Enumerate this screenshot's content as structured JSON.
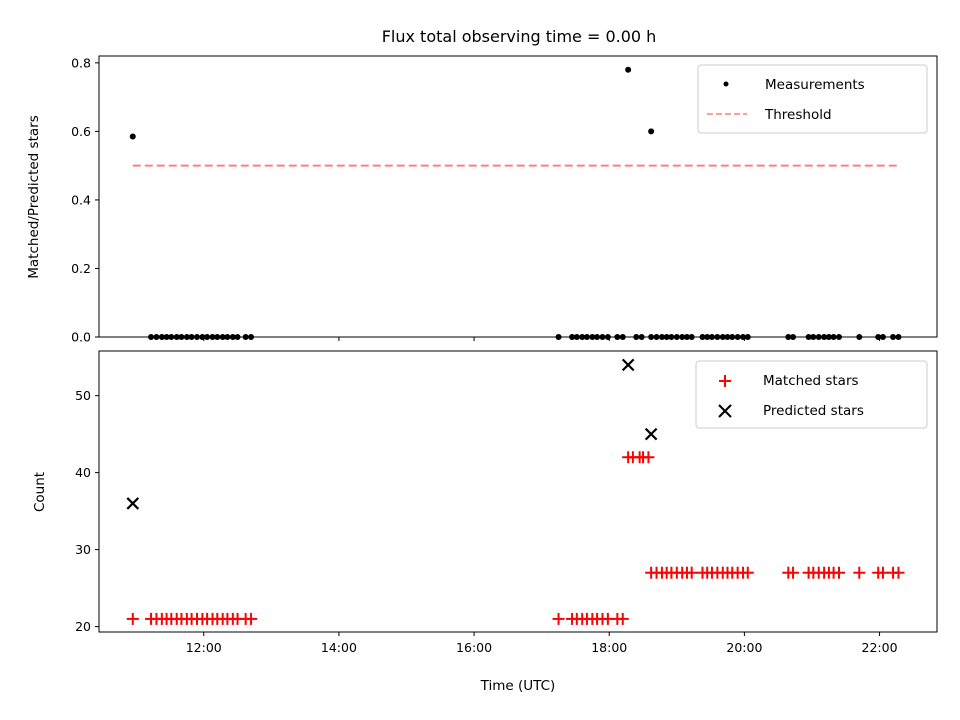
{
  "chart_data": [
    {
      "type": "scatter",
      "title": "Flux total observing time = 0.00 h",
      "xlabel": "",
      "ylabel": "Matched/Predicted stars",
      "xlim": [
        10.45,
        22.85
      ],
      "ylim": [
        0,
        0.82
      ],
      "yticks": [
        0.0,
        0.2,
        0.4,
        0.6,
        0.8
      ],
      "yticklabels": [
        "0.0",
        "0.2",
        "0.4",
        "0.6",
        "0.8"
      ],
      "legend": {
        "placement": "top-right",
        "entries": [
          "Measurements",
          "Threshold"
        ]
      },
      "colors": {
        "measurements": "#000000",
        "threshold": "#ff7f7f"
      },
      "series": [
        {
          "name": "Measurements",
          "marker": "dot",
          "points": [
            [
              10.95,
              0.585
            ],
            [
              11.22,
              0.0
            ],
            [
              11.3,
              0.0
            ],
            [
              11.38,
              0.0
            ],
            [
              11.45,
              0.0
            ],
            [
              11.52,
              0.0
            ],
            [
              11.6,
              0.0
            ],
            [
              11.67,
              0.0
            ],
            [
              11.75,
              0.0
            ],
            [
              11.82,
              0.0
            ],
            [
              11.9,
              0.0
            ],
            [
              11.98,
              0.0
            ],
            [
              12.05,
              0.0
            ],
            [
              12.13,
              0.0
            ],
            [
              12.2,
              0.0
            ],
            [
              12.28,
              0.0
            ],
            [
              12.35,
              0.0
            ],
            [
              12.43,
              0.0
            ],
            [
              12.5,
              0.0
            ],
            [
              12.62,
              0.0
            ],
            [
              12.7,
              0.0
            ],
            [
              17.25,
              0.0
            ],
            [
              17.45,
              0.0
            ],
            [
              17.52,
              0.0
            ],
            [
              17.6,
              0.0
            ],
            [
              17.67,
              0.0
            ],
            [
              17.75,
              0.0
            ],
            [
              17.82,
              0.0
            ],
            [
              17.9,
              0.0
            ],
            [
              17.98,
              0.0
            ],
            [
              18.12,
              0.0
            ],
            [
              18.2,
              0.0
            ],
            [
              18.28,
              0.78
            ],
            [
              18.62,
              0.6
            ],
            [
              18.4,
              0.0
            ],
            [
              18.48,
              0.0
            ],
            [
              18.62,
              0.0
            ],
            [
              18.7,
              0.0
            ],
            [
              18.78,
              0.0
            ],
            [
              18.85,
              0.0
            ],
            [
              18.92,
              0.0
            ],
            [
              19.0,
              0.0
            ],
            [
              19.08,
              0.0
            ],
            [
              19.15,
              0.0
            ],
            [
              19.22,
              0.0
            ],
            [
              19.38,
              0.0
            ],
            [
              19.45,
              0.0
            ],
            [
              19.52,
              0.0
            ],
            [
              19.6,
              0.0
            ],
            [
              19.68,
              0.0
            ],
            [
              19.75,
              0.0
            ],
            [
              19.82,
              0.0
            ],
            [
              19.9,
              0.0
            ],
            [
              19.98,
              0.0
            ],
            [
              20.05,
              0.0
            ],
            [
              20.65,
              0.0
            ],
            [
              20.72,
              0.0
            ],
            [
              20.95,
              0.0
            ],
            [
              21.02,
              0.0
            ],
            [
              21.1,
              0.0
            ],
            [
              21.18,
              0.0
            ],
            [
              21.25,
              0.0
            ],
            [
              21.32,
              0.0
            ],
            [
              21.4,
              0.0
            ],
            [
              21.7,
              0.0
            ],
            [
              21.98,
              0.0
            ],
            [
              22.05,
              0.0
            ],
            [
              22.2,
              0.0
            ],
            [
              22.28,
              0.0
            ]
          ]
        },
        {
          "name": "Threshold",
          "style": "dashed",
          "points": [
            [
              10.95,
              0.5
            ],
            [
              22.28,
              0.5
            ]
          ]
        }
      ]
    },
    {
      "type": "scatter",
      "title": "",
      "xlabel": "Time (UTC)",
      "ylabel": "Count",
      "xlim": [
        10.45,
        22.85
      ],
      "ylim": [
        19.3,
        55.8
      ],
      "xticks": [
        12,
        14,
        16,
        18,
        20,
        22
      ],
      "xticklabels": [
        "12:00",
        "14:00",
        "16:00",
        "18:00",
        "20:00",
        "22:00"
      ],
      "yticks": [
        20,
        30,
        40,
        50
      ],
      "yticklabels": [
        "20",
        "30",
        "40",
        "50"
      ],
      "legend": {
        "placement": "top-right",
        "entries": [
          "Matched stars",
          "Predicted stars"
        ]
      },
      "colors": {
        "matched": "#ff0000",
        "predicted": "#000000"
      },
      "series": [
        {
          "name": "Matched stars",
          "marker": "plus",
          "points": [
            [
              10.95,
              21
            ],
            [
              11.22,
              21
            ],
            [
              11.3,
              21
            ],
            [
              11.38,
              21
            ],
            [
              11.45,
              21
            ],
            [
              11.52,
              21
            ],
            [
              11.6,
              21
            ],
            [
              11.67,
              21
            ],
            [
              11.75,
              21
            ],
            [
              11.82,
              21
            ],
            [
              11.9,
              21
            ],
            [
              11.98,
              21
            ],
            [
              12.05,
              21
            ],
            [
              12.13,
              21
            ],
            [
              12.2,
              21
            ],
            [
              12.28,
              21
            ],
            [
              12.35,
              21
            ],
            [
              12.43,
              21
            ],
            [
              12.5,
              21
            ],
            [
              12.62,
              21
            ],
            [
              12.7,
              21
            ],
            [
              17.25,
              21
            ],
            [
              17.45,
              21
            ],
            [
              17.52,
              21
            ],
            [
              17.6,
              21
            ],
            [
              17.67,
              21
            ],
            [
              17.75,
              21
            ],
            [
              17.82,
              21
            ],
            [
              17.9,
              21
            ],
            [
              17.98,
              21
            ],
            [
              18.12,
              21
            ],
            [
              18.2,
              21
            ],
            [
              18.28,
              42
            ],
            [
              18.35,
              42
            ],
            [
              18.45,
              42
            ],
            [
              18.5,
              42
            ],
            [
              18.58,
              42
            ],
            [
              18.62,
              27
            ],
            [
              18.7,
              27
            ],
            [
              18.78,
              27
            ],
            [
              18.85,
              27
            ],
            [
              18.92,
              27
            ],
            [
              19.0,
              27
            ],
            [
              19.08,
              27
            ],
            [
              19.15,
              27
            ],
            [
              19.22,
              27
            ],
            [
              19.38,
              27
            ],
            [
              19.45,
              27
            ],
            [
              19.52,
              27
            ],
            [
              19.6,
              27
            ],
            [
              19.68,
              27
            ],
            [
              19.75,
              27
            ],
            [
              19.82,
              27
            ],
            [
              19.9,
              27
            ],
            [
              19.98,
              27
            ],
            [
              20.05,
              27
            ],
            [
              20.65,
              27
            ],
            [
              20.72,
              27
            ],
            [
              20.95,
              27
            ],
            [
              21.02,
              27
            ],
            [
              21.1,
              27
            ],
            [
              21.18,
              27
            ],
            [
              21.25,
              27
            ],
            [
              21.32,
              27
            ],
            [
              21.4,
              27
            ],
            [
              21.7,
              27
            ],
            [
              21.98,
              27
            ],
            [
              22.05,
              27
            ],
            [
              22.2,
              27
            ],
            [
              22.28,
              27
            ]
          ]
        },
        {
          "name": "Predicted stars",
          "marker": "x",
          "points": [
            [
              10.95,
              36
            ],
            [
              18.28,
              54
            ],
            [
              18.62,
              45
            ]
          ]
        }
      ]
    }
  ]
}
